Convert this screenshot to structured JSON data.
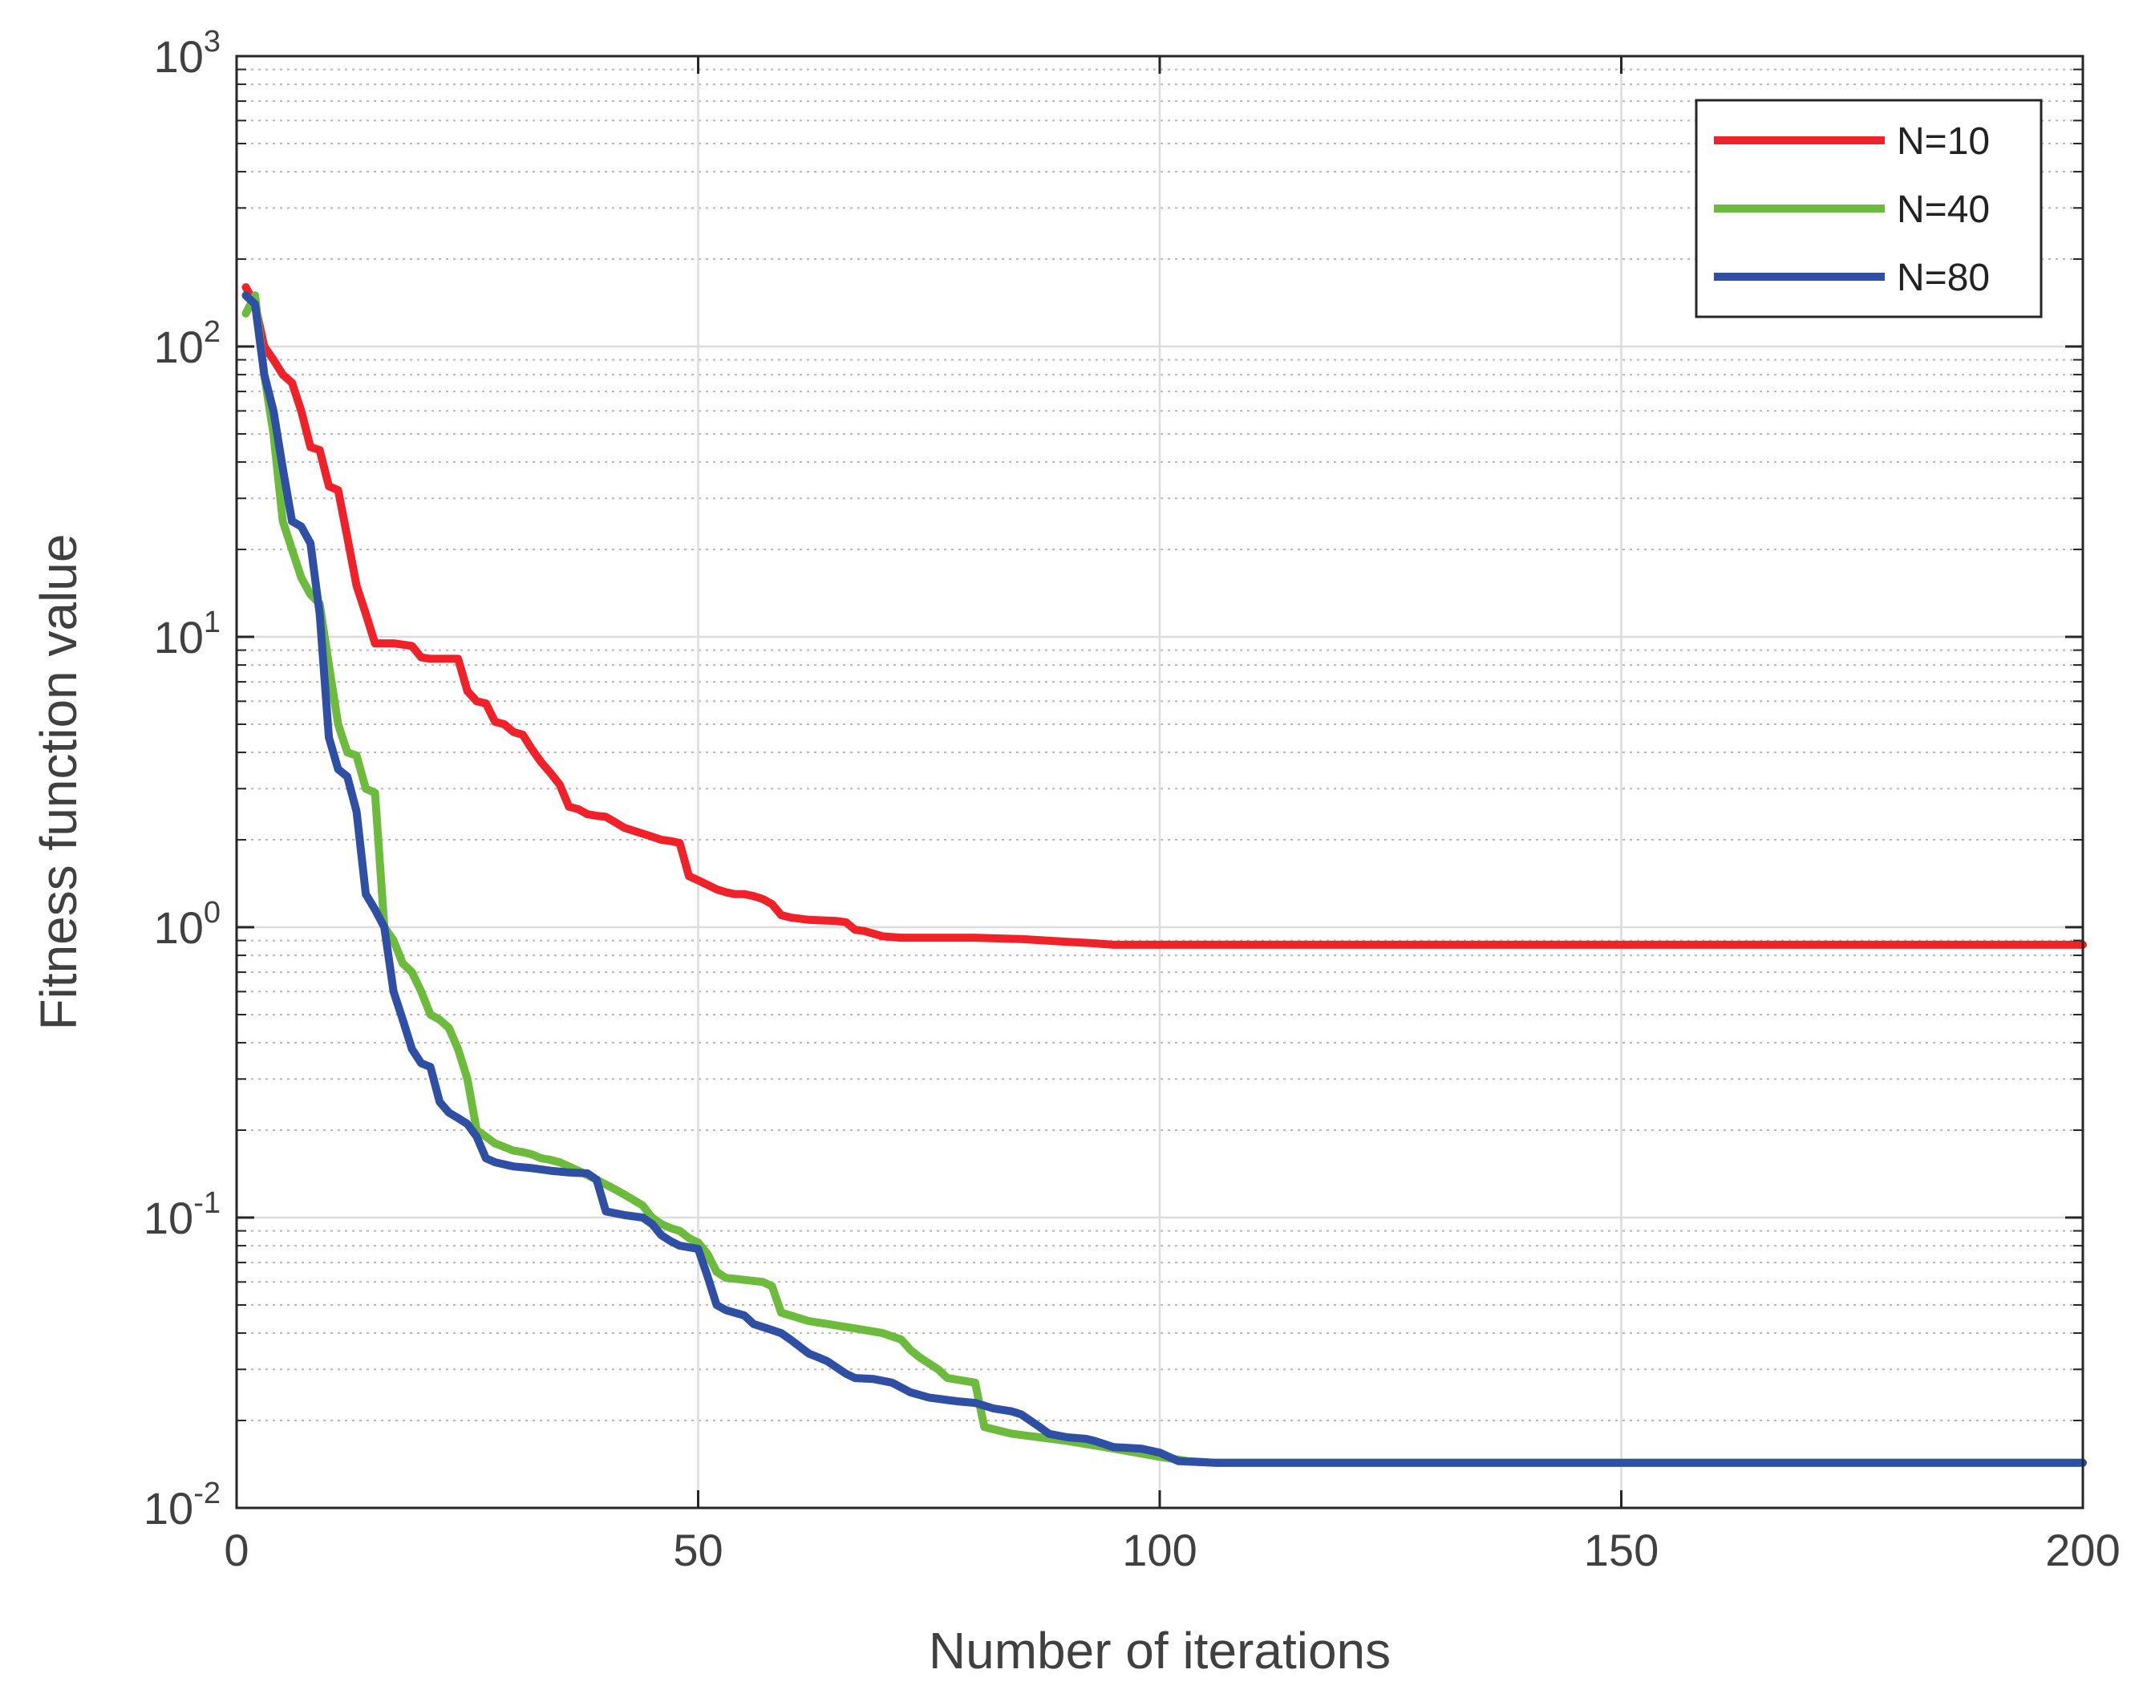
{
  "chart_data": {
    "type": "line",
    "title": "",
    "xlabel": "Number of iterations",
    "ylabel": "Fitness function value",
    "xlim": [
      0,
      200
    ],
    "ylim": [
      0.01,
      1000
    ],
    "yscale": "log",
    "grid": true,
    "minor_grid": true,
    "legend_position": "top-right",
    "x_ticks": [
      0,
      50,
      100,
      150,
      200
    ],
    "x_tick_labels": [
      "0",
      "50",
      "100",
      "150",
      "200"
    ],
    "y_ticks": [
      {
        "value": 0.01,
        "base": "10",
        "exp": "-2"
      },
      {
        "value": 0.1,
        "base": "10",
        "exp": "-1"
      },
      {
        "value": 1,
        "base": "10",
        "exp": "0"
      },
      {
        "value": 10,
        "base": "10",
        "exp": "1"
      },
      {
        "value": 100,
        "base": "10",
        "exp": "2"
      },
      {
        "value": 1000,
        "base": "10",
        "exp": "3"
      }
    ],
    "series": [
      {
        "name": "N=10",
        "color": "#ee2228",
        "points": [
          [
            1,
            160
          ],
          [
            2,
            140
          ],
          [
            3,
            100
          ],
          [
            4,
            90
          ],
          [
            5,
            80
          ],
          [
            6,
            75
          ],
          [
            7,
            60
          ],
          [
            8,
            45
          ],
          [
            9,
            44
          ],
          [
            10,
            33
          ],
          [
            11,
            32
          ],
          [
            12,
            22
          ],
          [
            13,
            15
          ],
          [
            14,
            12
          ],
          [
            15,
            9.5
          ],
          [
            16,
            9.5
          ],
          [
            17,
            9.5
          ],
          [
            18,
            9.4
          ],
          [
            19,
            9.3
          ],
          [
            20,
            8.5
          ],
          [
            21,
            8.4
          ],
          [
            22,
            8.4
          ],
          [
            23,
            8.4
          ],
          [
            24,
            8.4
          ],
          [
            25,
            6.5
          ],
          [
            26,
            6.0
          ],
          [
            27,
            5.9
          ],
          [
            28,
            5.1
          ],
          [
            29,
            5.0
          ],
          [
            30,
            4.7
          ],
          [
            31,
            4.6
          ],
          [
            32,
            4.1
          ],
          [
            33,
            3.7
          ],
          [
            34,
            3.4
          ],
          [
            35,
            3.1
          ],
          [
            36,
            2.6
          ],
          [
            37,
            2.55
          ],
          [
            38,
            2.45
          ],
          [
            39,
            2.42
          ],
          [
            40,
            2.4
          ],
          [
            41,
            2.3
          ],
          [
            42,
            2.2
          ],
          [
            43,
            2.15
          ],
          [
            44,
            2.1
          ],
          [
            45,
            2.05
          ],
          [
            46,
            2.0
          ],
          [
            47,
            1.98
          ],
          [
            48,
            1.95
          ],
          [
            49,
            1.5
          ],
          [
            50,
            1.45
          ],
          [
            51,
            1.4
          ],
          [
            52,
            1.35
          ],
          [
            53,
            1.32
          ],
          [
            54,
            1.3
          ],
          [
            55,
            1.3
          ],
          [
            56,
            1.28
          ],
          [
            57,
            1.25
          ],
          [
            58,
            1.2
          ],
          [
            59,
            1.1
          ],
          [
            60,
            1.08
          ],
          [
            62,
            1.06
          ],
          [
            65,
            1.05
          ],
          [
            66,
            1.04
          ],
          [
            67,
            0.98
          ],
          [
            68,
            0.97
          ],
          [
            70,
            0.93
          ],
          [
            72,
            0.92
          ],
          [
            75,
            0.92
          ],
          [
            80,
            0.92
          ],
          [
            85,
            0.91
          ],
          [
            90,
            0.89
          ],
          [
            93,
            0.88
          ],
          [
            95,
            0.87
          ],
          [
            100,
            0.87
          ],
          [
            110,
            0.87
          ],
          [
            150,
            0.87
          ],
          [
            200,
            0.87
          ]
        ]
      },
      {
        "name": "N=40",
        "color": "#6cbb3c",
        "points": [
          [
            1,
            130
          ],
          [
            2,
            150
          ],
          [
            3,
            80
          ],
          [
            4,
            50
          ],
          [
            5,
            25
          ],
          [
            6,
            20
          ],
          [
            7,
            16
          ],
          [
            8,
            14
          ],
          [
            9,
            13
          ],
          [
            10,
            8
          ],
          [
            11,
            5
          ],
          [
            12,
            4
          ],
          [
            13,
            3.9
          ],
          [
            14,
            3
          ],
          [
            15,
            2.9
          ],
          [
            16,
            1.0
          ],
          [
            17,
            0.9
          ],
          [
            18,
            0.75
          ],
          [
            19,
            0.7
          ],
          [
            20,
            0.6
          ],
          [
            21,
            0.5
          ],
          [
            22,
            0.48
          ],
          [
            23,
            0.45
          ],
          [
            24,
            0.38
          ],
          [
            25,
            0.3
          ],
          [
            26,
            0.2
          ],
          [
            27,
            0.19
          ],
          [
            28,
            0.18
          ],
          [
            29,
            0.175
          ],
          [
            30,
            0.17
          ],
          [
            31,
            0.168
          ],
          [
            32,
            0.165
          ],
          [
            33,
            0.16
          ],
          [
            34,
            0.158
          ],
          [
            35,
            0.155
          ],
          [
            36,
            0.15
          ],
          [
            37,
            0.145
          ],
          [
            38,
            0.14
          ],
          [
            39,
            0.135
          ],
          [
            40,
            0.13
          ],
          [
            41,
            0.125
          ],
          [
            42,
            0.12
          ],
          [
            43,
            0.115
          ],
          [
            44,
            0.11
          ],
          [
            45,
            0.1
          ],
          [
            46,
            0.095
          ],
          [
            47,
            0.092
          ],
          [
            48,
            0.09
          ],
          [
            49,
            0.085
          ],
          [
            50,
            0.082
          ],
          [
            51,
            0.075
          ],
          [
            52,
            0.065
          ],
          [
            53,
            0.062
          ],
          [
            55,
            0.061
          ],
          [
            57,
            0.06
          ],
          [
            58,
            0.058
          ],
          [
            59,
            0.047
          ],
          [
            60,
            0.046
          ],
          [
            62,
            0.044
          ],
          [
            64,
            0.043
          ],
          [
            66,
            0.042
          ],
          [
            68,
            0.041
          ],
          [
            70,
            0.04
          ],
          [
            72,
            0.038
          ],
          [
            73,
            0.035
          ],
          [
            74,
            0.033
          ],
          [
            76,
            0.03
          ],
          [
            77,
            0.028
          ],
          [
            80,
            0.027
          ],
          [
            81,
            0.019
          ],
          [
            84,
            0.018
          ],
          [
            87,
            0.0175
          ],
          [
            90,
            0.017
          ],
          [
            95,
            0.016
          ],
          [
            100,
            0.015
          ],
          [
            103,
            0.0145
          ],
          [
            106,
            0.0143
          ],
          [
            200,
            0.0143
          ]
        ]
      },
      {
        "name": "N=80",
        "color": "#2e4fa3",
        "points": [
          [
            1,
            150
          ],
          [
            2,
            140
          ],
          [
            3,
            80
          ],
          [
            4,
            60
          ],
          [
            5,
            38
          ],
          [
            6,
            25
          ],
          [
            7,
            24
          ],
          [
            8,
            21
          ],
          [
            9,
            12
          ],
          [
            10,
            4.5
          ],
          [
            11,
            3.5
          ],
          [
            12,
            3.3
          ],
          [
            13,
            2.5
          ],
          [
            14,
            1.3
          ],
          [
            15,
            1.15
          ],
          [
            16,
            1.0
          ],
          [
            17,
            0.6
          ],
          [
            18,
            0.48
          ],
          [
            19,
            0.38
          ],
          [
            20,
            0.34
          ],
          [
            21,
            0.33
          ],
          [
            22,
            0.25
          ],
          [
            23,
            0.23
          ],
          [
            24,
            0.22
          ],
          [
            25,
            0.21
          ],
          [
            26,
            0.19
          ],
          [
            27,
            0.16
          ],
          [
            28,
            0.155
          ],
          [
            30,
            0.15
          ],
          [
            32,
            0.148
          ],
          [
            34,
            0.145
          ],
          [
            36,
            0.143
          ],
          [
            38,
            0.142
          ],
          [
            39,
            0.135
          ],
          [
            40,
            0.105
          ],
          [
            42,
            0.102
          ],
          [
            44,
            0.1
          ],
          [
            45,
            0.095
          ],
          [
            46,
            0.087
          ],
          [
            47,
            0.083
          ],
          [
            48,
            0.08
          ],
          [
            50,
            0.078
          ],
          [
            51,
            0.063
          ],
          [
            52,
            0.05
          ],
          [
            53,
            0.048
          ],
          [
            55,
            0.046
          ],
          [
            56,
            0.043
          ],
          [
            58,
            0.041
          ],
          [
            59,
            0.04
          ],
          [
            60,
            0.038
          ],
          [
            62,
            0.034
          ],
          [
            63,
            0.033
          ],
          [
            64,
            0.032
          ],
          [
            66,
            0.029
          ],
          [
            67,
            0.028
          ],
          [
            69,
            0.0278
          ],
          [
            71,
            0.027
          ],
          [
            73,
            0.025
          ],
          [
            75,
            0.024
          ],
          [
            78,
            0.0233
          ],
          [
            80,
            0.023
          ],
          [
            82,
            0.022
          ],
          [
            84,
            0.0215
          ],
          [
            85,
            0.021
          ],
          [
            87,
            0.019
          ],
          [
            88,
            0.018
          ],
          [
            90,
            0.0175
          ],
          [
            92,
            0.0173
          ],
          [
            93,
            0.017
          ],
          [
            95,
            0.0162
          ],
          [
            98,
            0.016
          ],
          [
            100,
            0.0155
          ],
          [
            101,
            0.015
          ],
          [
            102,
            0.0145
          ],
          [
            106,
            0.0143
          ],
          [
            200,
            0.0143
          ]
        ]
      }
    ]
  }
}
